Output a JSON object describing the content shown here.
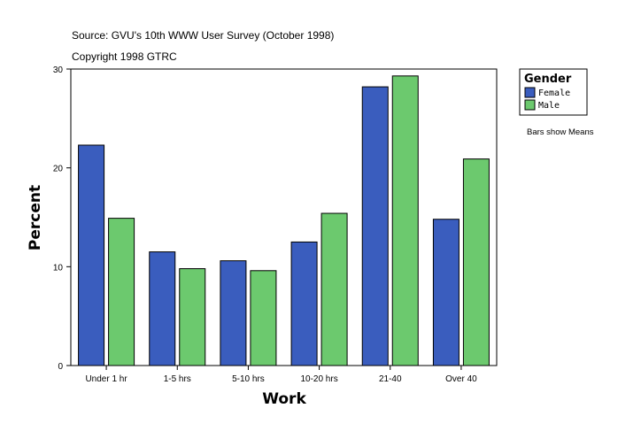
{
  "source_line": "Source: GVU's 10th WWW User Survey (October 1998)",
  "copyright_line": "Copyright 1998 GTRC",
  "note": "Bars show Means",
  "chart_data": {
    "type": "bar",
    "xlabel": "Work",
    "ylabel": "Percent",
    "ylim": [
      0,
      30
    ],
    "yticks": [
      0,
      10,
      20,
      30
    ],
    "categories": [
      "Under 1 hr",
      "1-5 hrs",
      "5-10 hrs",
      "10-20 hrs",
      "21-40",
      "Over 40"
    ],
    "legend": {
      "title": "Gender",
      "placement": "top-right"
    },
    "series": [
      {
        "name": "Female",
        "color": "#3a5dbe",
        "values": [
          22.3,
          11.5,
          10.6,
          12.5,
          28.2,
          14.8
        ]
      },
      {
        "name": "Male",
        "color": "#6cc96e",
        "values": [
          14.9,
          9.8,
          9.6,
          15.4,
          29.3,
          20.9
        ]
      }
    ]
  }
}
